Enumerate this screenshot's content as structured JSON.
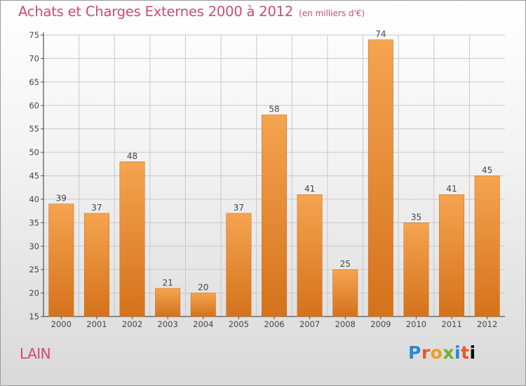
{
  "header": {
    "title": "Achats et Charges Externes 2000 à 2012",
    "unit": "(en milliers d'€)"
  },
  "footer": {
    "commune": "LAIN",
    "brand_letters": [
      "P",
      "r",
      "o",
      "x",
      "i",
      "t",
      "i"
    ]
  },
  "colors": {
    "title": "#d04a6c",
    "bar_top": "#f5a450",
    "bar_bottom": "#d5721b",
    "grid": "#c8c8c8"
  },
  "chart_data": {
    "type": "bar",
    "title": "Achats et Charges Externes 2000 à 2012",
    "subtitle": "(en milliers d'€)",
    "xlabel": "",
    "ylabel": "",
    "categories": [
      "2000",
      "2001",
      "2002",
      "2003",
      "2004",
      "2005",
      "2006",
      "2007",
      "2008",
      "2009",
      "2010",
      "2011",
      "2012"
    ],
    "values": [
      39,
      37,
      48,
      21,
      20,
      37,
      58,
      41,
      25,
      74,
      35,
      41,
      45
    ],
    "ylim": [
      15,
      75
    ],
    "yticks": [
      15,
      20,
      25,
      30,
      35,
      40,
      45,
      50,
      55,
      60,
      65,
      70,
      75
    ],
    "grid": true,
    "data_labels": true
  }
}
